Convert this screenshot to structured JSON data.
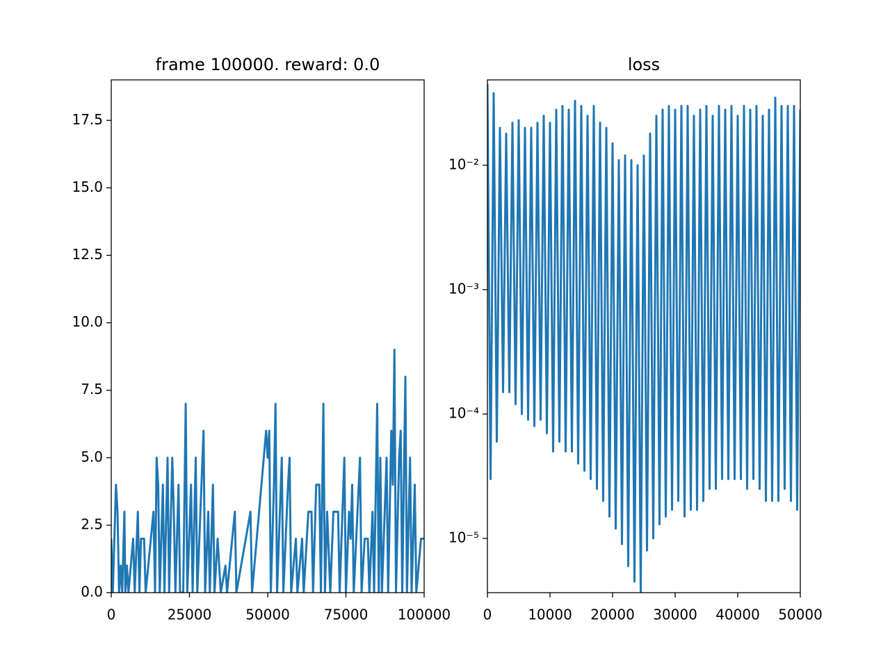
{
  "chart_data": [
    {
      "type": "line",
      "title": "frame 100000. reward: 0.0",
      "color": "#1f77b4",
      "xlim": [
        0,
        100000
      ],
      "xticks": [
        0,
        25000,
        50000,
        75000,
        100000
      ],
      "ylim": [
        0,
        19
      ],
      "yticks": [
        {
          "value": 0,
          "label": "0.0"
        },
        2.5,
        {
          "value": 5,
          "label": "5.0"
        },
        7.5,
        {
          "value": 10,
          "label": "10.0"
        },
        12.5,
        {
          "value": 15,
          "label": "15.0"
        },
        17.5
      ],
      "x": [
        0,
        500,
        1500,
        2000,
        2500,
        3000,
        3500,
        4200,
        4500,
        5000,
        5500,
        7000,
        7500,
        8500,
        9000,
        9500,
        10500,
        11000,
        13500,
        14000,
        14500,
        15000,
        15500,
        16500,
        17000,
        18000,
        18500,
        19500,
        20000,
        20500,
        21500,
        22000,
        23000,
        23800,
        24300,
        25500,
        26000,
        27000,
        27500,
        28500,
        29500,
        30000,
        31000,
        31500,
        32500,
        33000,
        34000,
        35000,
        36500,
        37000,
        39500,
        40000,
        44500,
        45000,
        49500,
        50000,
        50500,
        51000,
        52000,
        52500,
        53000,
        54500,
        55000,
        56500,
        57000,
        57500,
        59000,
        59500,
        61000,
        61500,
        63000,
        64000,
        64500,
        65500,
        66500,
        67000,
        67800,
        68300,
        69000,
        70000,
        71000,
        72500,
        73000,
        74500,
        75000,
        76000,
        76500,
        77000,
        77500,
        79500,
        80000,
        81000,
        82000,
        82500,
        83500,
        84000,
        85000,
        85500,
        86000,
        86500,
        88000,
        88500,
        89500,
        90000,
        90500,
        91000,
        92000,
        92500,
        93000,
        94000,
        94500,
        95500,
        96000,
        97000,
        97500,
        99000,
        100000
      ],
      "values": [
        2,
        0,
        4,
        3,
        0,
        1,
        0,
        3,
        0,
        1,
        0,
        2,
        0,
        3,
        0,
        2,
        2,
        0,
        3,
        0,
        5,
        4,
        0,
        4,
        0,
        5,
        0,
        5,
        3,
        0,
        4,
        0,
        0,
        7,
        0,
        4,
        0,
        5,
        0,
        3,
        6,
        0,
        3,
        0,
        4,
        0,
        2,
        0,
        1,
        0,
        3,
        0,
        3,
        0,
        6,
        5,
        6,
        0,
        4,
        7,
        0,
        5,
        0,
        4,
        5,
        0,
        2,
        0,
        2,
        0,
        3,
        3,
        0,
        4,
        4,
        0,
        7,
        0,
        3,
        0,
        3,
        3,
        0,
        5,
        0,
        3,
        2,
        4,
        0,
        5,
        0,
        2,
        2,
        0,
        3,
        0,
        7,
        0,
        5,
        0,
        5,
        0,
        6,
        4,
        9,
        0,
        5,
        6,
        0,
        8,
        0,
        5,
        0,
        4,
        0,
        2,
        2
      ]
    },
    {
      "type": "line",
      "title": "loss",
      "color": "#1f77b4",
      "yscale": "log",
      "xlim": [
        0,
        50000
      ],
      "xticks": [
        0,
        10000,
        20000,
        30000,
        40000,
        50000
      ],
      "ylim": [
        3.66e-06,
        0.0486
      ],
      "yticks": [
        {
          "value": 1e-05,
          "label": "10⁻⁵"
        },
        {
          "value": 0.0001,
          "label": "10⁻⁴"
        },
        {
          "value": 0.001,
          "label": "10⁻³"
        },
        {
          "value": 0.01,
          "label": "10⁻²"
        }
      ],
      "x": [
        0,
        500,
        1000,
        1500,
        2000,
        2500,
        3000,
        3500,
        4000,
        4500,
        5000,
        5500,
        6000,
        6500,
        7000,
        7500,
        8000,
        8500,
        9000,
        9500,
        10000,
        10500,
        11000,
        11500,
        12000,
        12500,
        13000,
        13500,
        14000,
        14500,
        15000,
        15500,
        16000,
        16500,
        17000,
        17500,
        18000,
        18500,
        19000,
        19500,
        20000,
        20500,
        21000,
        21500,
        22000,
        22500,
        23000,
        23500,
        24000,
        24500,
        25000,
        25500,
        26000,
        26500,
        27000,
        27500,
        28000,
        28500,
        29000,
        29500,
        30000,
        30500,
        31000,
        31500,
        32000,
        32500,
        33000,
        33500,
        34000,
        34500,
        35000,
        35500,
        36000,
        36500,
        37000,
        37500,
        38000,
        38500,
        39000,
        39500,
        40000,
        40500,
        41000,
        41500,
        42000,
        42500,
        43000,
        43500,
        44000,
        44500,
        45000,
        45500,
        46000,
        46500,
        47000,
        47500,
        48000,
        48500,
        49000,
        49500,
        50000
      ],
      "values": [
        0.045,
        3e-05,
        0.038,
        6e-05,
        0.02,
        0.00015,
        0.018,
        0.00015,
        0.022,
        0.00012,
        0.023,
        0.0001,
        0.02,
        9e-05,
        0.02,
        8e-05,
        0.022,
        9e-05,
        0.025,
        7e-05,
        0.022,
        5e-05,
        0.028,
        6e-05,
        0.03,
        5e-05,
        0.028,
        5e-05,
        0.033,
        4e-05,
        0.03,
        3.5e-05,
        0.025,
        3e-05,
        0.03,
        2.5e-05,
        0.022,
        2e-05,
        0.02,
        1.5e-05,
        0.015,
        1.2e-05,
        0.011,
        9e-06,
        0.012,
        6e-06,
        0.011,
        4.5e-06,
        0.01,
        3.7e-06,
        0.012,
        8e-06,
        0.018,
        1e-05,
        0.025,
        1.3e-05,
        0.028,
        1.5e-05,
        0.03,
        1.7e-05,
        0.028,
        2e-05,
        0.03,
        1.5e-05,
        0.03,
        1.7e-05,
        0.025,
        1.7e-05,
        0.028,
        2e-05,
        0.03,
        2.5e-05,
        0.025,
        2.5e-05,
        0.03,
        3e-05,
        0.028,
        3e-05,
        0.03,
        3e-05,
        0.025,
        3e-05,
        0.03,
        2.5e-05,
        0.028,
        3e-05,
        0.03,
        2.5e-05,
        0.025,
        2e-05,
        0.028,
        2e-05,
        0.035,
        2e-05,
        0.03,
        2.5e-05,
        0.03,
        2e-05,
        0.03,
        1.7e-05,
        0.028
      ]
    }
  ]
}
